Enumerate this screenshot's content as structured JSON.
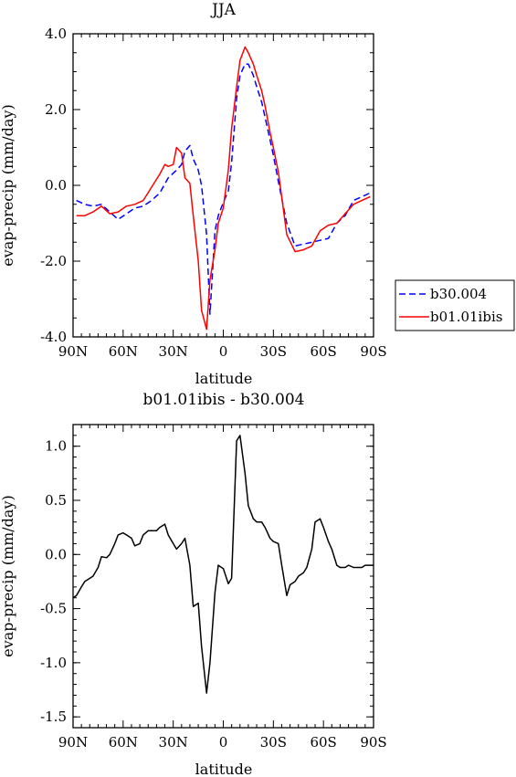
{
  "chart_data": [
    {
      "type": "line",
      "title": "JJA",
      "xlabel": "latitude",
      "ylabel": "evap-precip (mm/day)",
      "xlim": [
        90,
        -90
      ],
      "ylim": [
        -4,
        4
      ],
      "xticks": [
        {
          "value": 90,
          "label": "90N"
        },
        {
          "value": 60,
          "label": "60N"
        },
        {
          "value": 30,
          "label": "30N"
        },
        {
          "value": 0,
          "label": "0"
        },
        {
          "value": -30,
          "label": "30S"
        },
        {
          "value": -60,
          "label": "60S"
        },
        {
          "value": -90,
          "label": "90S"
        }
      ],
      "yticks": [
        {
          "value": 4,
          "label": "4.0"
        },
        {
          "value": 2,
          "label": "2.0"
        },
        {
          "value": 0,
          "label": "0.0"
        },
        {
          "value": -2,
          "label": "-2.0"
        },
        {
          "value": -4,
          "label": "-4.0"
        }
      ],
      "legend_position": "right",
      "series": [
        {
          "name": "b30.004",
          "color": "#0000ff",
          "dash": "dashed",
          "x": [
            88,
            83,
            78,
            73,
            68,
            63,
            58,
            53,
            48,
            43,
            38,
            33,
            28,
            25,
            23,
            20,
            18,
            15,
            13,
            10,
            8,
            5,
            3,
            0,
            -3,
            -5,
            -8,
            -10,
            -13,
            -15,
            -18,
            -20,
            -23,
            -25,
            -28,
            -30,
            -33,
            -38,
            -43,
            -48,
            -53,
            -58,
            -63,
            -68,
            -73,
            -78,
            -83,
            -88
          ],
          "y": [
            -0.4,
            -0.5,
            -0.55,
            -0.5,
            -0.7,
            -0.9,
            -0.75,
            -0.6,
            -0.55,
            -0.4,
            -0.2,
            0.2,
            0.4,
            0.55,
            0.9,
            1.05,
            0.7,
            0.4,
            0,
            -1.3,
            -3.4,
            -1.2,
            -0.8,
            -0.45,
            -0.15,
            0.6,
            2.3,
            2.9,
            3.2,
            3.2,
            2.9,
            2.6,
            2.2,
            1.8,
            1.2,
            0.8,
            0.1,
            -1.0,
            -1.6,
            -1.55,
            -1.5,
            -1.45,
            -1.4,
            -1.0,
            -0.8,
            -0.4,
            -0.3,
            -0.2
          ]
        },
        {
          "name": "b01.01ibis",
          "color": "#ff0000",
          "dash": "solid",
          "x": [
            88,
            83,
            78,
            73,
            68,
            63,
            58,
            53,
            48,
            43,
            38,
            35,
            33,
            30,
            28,
            25,
            23,
            20,
            18,
            15,
            13,
            10,
            8,
            5,
            3,
            0,
            -3,
            -5,
            -8,
            -10,
            -13,
            -15,
            -18,
            -20,
            -23,
            -25,
            -28,
            -30,
            -33,
            -38,
            -43,
            -48,
            -53,
            -58,
            -63,
            -68,
            -73,
            -78,
            -83,
            -88
          ],
          "y": [
            -0.8,
            -0.8,
            -0.7,
            -0.55,
            -0.75,
            -0.7,
            -0.55,
            -0.5,
            -0.4,
            -0.05,
            0.3,
            0.55,
            0.5,
            0.55,
            1.0,
            0.85,
            0.2,
            0.05,
            -0.8,
            -2.0,
            -3.3,
            -3.8,
            -2.5,
            -1.7,
            -1.0,
            -0.6,
            0.4,
            1.5,
            2.6,
            3.3,
            3.65,
            3.5,
            3.2,
            2.9,
            2.5,
            2.1,
            1.4,
            1.0,
            0.35,
            -1.3,
            -1.75,
            -1.7,
            -1.6,
            -1.2,
            -1.05,
            -1.0,
            -0.75,
            -0.5,
            -0.4,
            -0.3
          ]
        }
      ]
    },
    {
      "type": "line",
      "title": "b01.01ibis - b30.004",
      "xlabel": "latitude",
      "ylabel": "evap-precip (mm/day)",
      "xlim": [
        90,
        -90
      ],
      "ylim": [
        -1.6,
        1.2
      ],
      "xticks": [
        {
          "value": 90,
          "label": "90N"
        },
        {
          "value": 60,
          "label": "60N"
        },
        {
          "value": 30,
          "label": "30N"
        },
        {
          "value": 0,
          "label": "0"
        },
        {
          "value": -30,
          "label": "30S"
        },
        {
          "value": -60,
          "label": "60S"
        },
        {
          "value": -90,
          "label": "90S"
        }
      ],
      "yticks": [
        {
          "value": 1.0,
          "label": "1.0"
        },
        {
          "value": 0.5,
          "label": "0.5"
        },
        {
          "value": 0.0,
          "label": "0.0"
        },
        {
          "value": -0.5,
          "label": "-0.5"
        },
        {
          "value": -1.0,
          "label": "-1.0"
        },
        {
          "value": -1.5,
          "label": "-1.5"
        }
      ],
      "series": [
        {
          "color": "#000000",
          "dash": "solid",
          "x": [
            90,
            88,
            85,
            83,
            80,
            78,
            75,
            73,
            70,
            68,
            65,
            63,
            60,
            58,
            55,
            53,
            50,
            48,
            45,
            43,
            40,
            38,
            35,
            33,
            30,
            28,
            25,
            23,
            20,
            18,
            15,
            13,
            10,
            8,
            5,
            3,
            0,
            -3,
            -5,
            -8,
            -10,
            -13,
            -15,
            -18,
            -20,
            -23,
            -25,
            -28,
            -30,
            -33,
            -35,
            -38,
            -40,
            -43,
            -45,
            -48,
            -50,
            -53,
            -55,
            -58,
            -60,
            -63,
            -65,
            -68,
            -70,
            -73,
            -75,
            -78,
            -80,
            -83,
            -85,
            -88,
            -90
          ],
          "y": [
            -0.4,
            -0.38,
            -0.3,
            -0.25,
            -0.22,
            -0.2,
            -0.12,
            -0.02,
            -0.03,
            0.0,
            0.1,
            0.18,
            0.2,
            0.18,
            0.15,
            0.08,
            0.1,
            0.18,
            0.22,
            0.22,
            0.22,
            0.25,
            0.28,
            0.18,
            0.1,
            0.05,
            0.1,
            0.15,
            -0.1,
            -0.48,
            -0.45,
            -0.85,
            -1.28,
            -1.0,
            -0.35,
            -0.1,
            -0.13,
            -0.27,
            -0.22,
            1.05,
            1.1,
            0.75,
            0.45,
            0.33,
            0.3,
            0.3,
            0.25,
            0.15,
            0.12,
            0.1,
            -0.1,
            -0.38,
            -0.28,
            -0.25,
            -0.2,
            -0.17,
            -0.12,
            0.05,
            0.3,
            0.33,
            0.25,
            0.12,
            0.05,
            -0.1,
            -0.12,
            -0.12,
            -0.1,
            -0.12,
            -0.12,
            -0.12,
            -0.1,
            -0.1,
            -0.1
          ]
        }
      ]
    }
  ]
}
